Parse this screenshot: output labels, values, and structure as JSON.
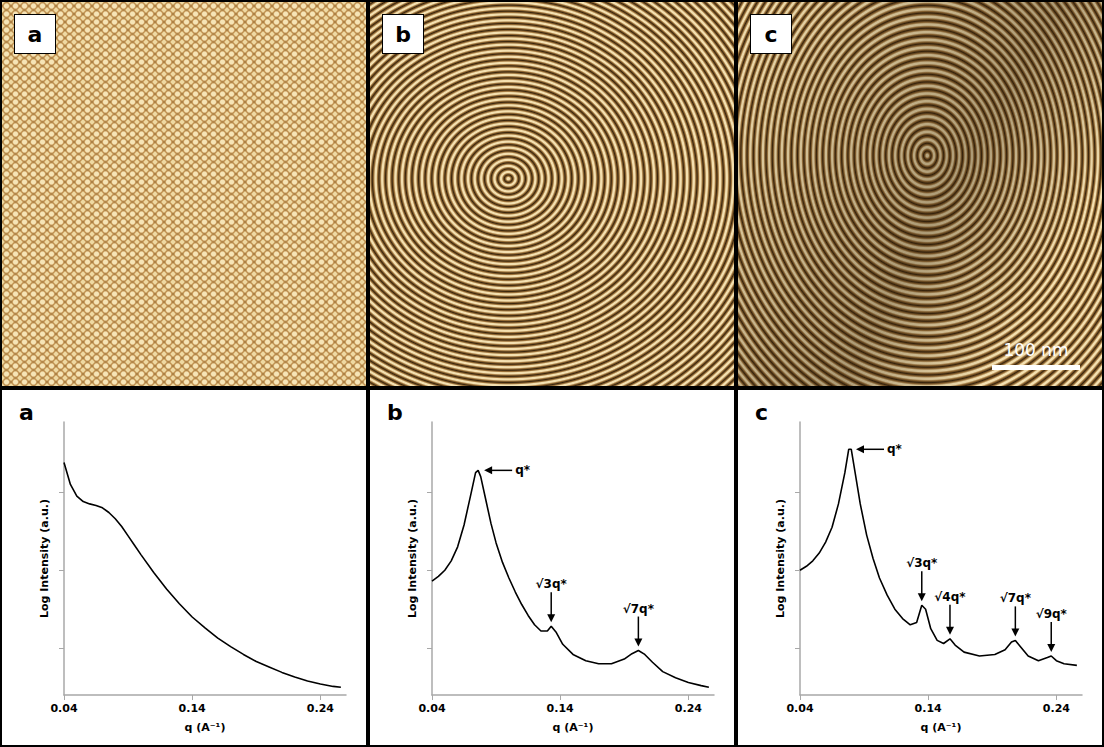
{
  "images": [
    {
      "label": "a"
    },
    {
      "label": "b"
    },
    {
      "label": "c",
      "scale_bar": "100 nm"
    }
  ],
  "chart_data": [
    {
      "type": "line",
      "title": "a",
      "x_label": "q (A⁻¹)",
      "y_label": "Log Intensity (a.u.)",
      "color": "#000000",
      "grid": false,
      "tick_labels": "x",
      "xlim": [
        0.04,
        0.26
      ],
      "xticks": [
        0.04,
        0.14,
        0.24
      ],
      "ylim": [
        0.4,
        3.9
      ],
      "yticks": [
        1,
        2,
        3
      ],
      "x": [
        0.04,
        0.045,
        0.05,
        0.055,
        0.06,
        0.065,
        0.07,
        0.075,
        0.08,
        0.085,
        0.09,
        0.095,
        0.1,
        0.11,
        0.12,
        0.13,
        0.14,
        0.15,
        0.16,
        0.17,
        0.18,
        0.19,
        0.2,
        0.21,
        0.22,
        0.23,
        0.24,
        0.25,
        0.256
      ],
      "values": [
        3.38,
        3.1,
        2.95,
        2.88,
        2.85,
        2.83,
        2.8,
        2.74,
        2.66,
        2.56,
        2.44,
        2.32,
        2.2,
        1.97,
        1.76,
        1.57,
        1.4,
        1.26,
        1.13,
        1.02,
        0.92,
        0.83,
        0.76,
        0.69,
        0.63,
        0.58,
        0.54,
        0.51,
        0.5
      ],
      "annotations": []
    },
    {
      "type": "line",
      "title": "b",
      "x_label": "q (A⁻¹)",
      "y_label": "Log Intensity (a.u.)",
      "color": "#000000",
      "grid": false,
      "tick_labels": "x",
      "xlim": [
        0.04,
        0.26
      ],
      "xticks": [
        0.04,
        0.14,
        0.24
      ],
      "ylim": [
        0.4,
        3.9
      ],
      "yticks": [
        1,
        2,
        3
      ],
      "x": [
        0.04,
        0.045,
        0.05,
        0.055,
        0.06,
        0.065,
        0.07,
        0.074,
        0.076,
        0.078,
        0.082,
        0.086,
        0.09,
        0.095,
        0.1,
        0.105,
        0.11,
        0.115,
        0.12,
        0.125,
        0.13,
        0.133,
        0.137,
        0.142,
        0.15,
        0.16,
        0.17,
        0.18,
        0.19,
        0.196,
        0.201,
        0.206,
        0.212,
        0.22,
        0.23,
        0.24,
        0.25,
        0.256
      ],
      "values": [
        1.86,
        1.92,
        2.0,
        2.12,
        2.3,
        2.58,
        2.95,
        3.25,
        3.28,
        3.2,
        2.9,
        2.6,
        2.35,
        2.1,
        1.9,
        1.72,
        1.56,
        1.42,
        1.3,
        1.22,
        1.22,
        1.28,
        1.2,
        1.05,
        0.92,
        0.84,
        0.8,
        0.8,
        0.86,
        0.93,
        0.97,
        0.92,
        0.82,
        0.7,
        0.62,
        0.56,
        0.52,
        0.5
      ],
      "annotations": [
        {
          "text": "q*",
          "x": 0.076,
          "y": 3.28
        },
        {
          "text": "√3q*",
          "x": 0.133,
          "y": 1.28
        },
        {
          "text": "√7q*",
          "x": 0.201,
          "y": 0.97
        }
      ]
    },
    {
      "type": "line",
      "title": "c",
      "x_label": "q (A⁻¹)",
      "y_label": "Log Intensity (a.u.)",
      "color": "#000000",
      "grid": false,
      "tick_labels": "x",
      "xlim": [
        0.04,
        0.26
      ],
      "xticks": [
        0.04,
        0.14,
        0.24
      ],
      "ylim": [
        0.4,
        3.9
      ],
      "yticks": [
        1,
        2,
        3
      ],
      "x": [
        0.04,
        0.045,
        0.05,
        0.055,
        0.06,
        0.065,
        0.07,
        0.075,
        0.078,
        0.08,
        0.083,
        0.087,
        0.092,
        0.097,
        0.102,
        0.108,
        0.114,
        0.12,
        0.126,
        0.131,
        0.135,
        0.138,
        0.142,
        0.147,
        0.152,
        0.157,
        0.161,
        0.168,
        0.18,
        0.192,
        0.2,
        0.205,
        0.208,
        0.212,
        0.218,
        0.226,
        0.233,
        0.236,
        0.24,
        0.246,
        0.256
      ],
      "values": [
        2.0,
        2.05,
        2.12,
        2.22,
        2.36,
        2.55,
        2.85,
        3.25,
        3.55,
        3.55,
        3.25,
        2.85,
        2.45,
        2.15,
        1.9,
        1.68,
        1.5,
        1.38,
        1.3,
        1.33,
        1.55,
        1.5,
        1.25,
        1.1,
        1.06,
        1.12,
        1.04,
        0.95,
        0.9,
        0.92,
        0.98,
        1.08,
        1.1,
        1.02,
        0.9,
        0.84,
        0.88,
        0.9,
        0.84,
        0.8,
        0.78
      ],
      "annotations": [
        {
          "text": "q*",
          "x": 0.079,
          "y": 3.55
        },
        {
          "text": "√3q*",
          "x": 0.135,
          "y": 1.55
        },
        {
          "text": "√4q*",
          "x": 0.157,
          "y": 1.12
        },
        {
          "text": "√7q*",
          "x": 0.208,
          "y": 1.1
        },
        {
          "text": "√9q*",
          "x": 0.236,
          "y": 0.9
        }
      ]
    }
  ]
}
